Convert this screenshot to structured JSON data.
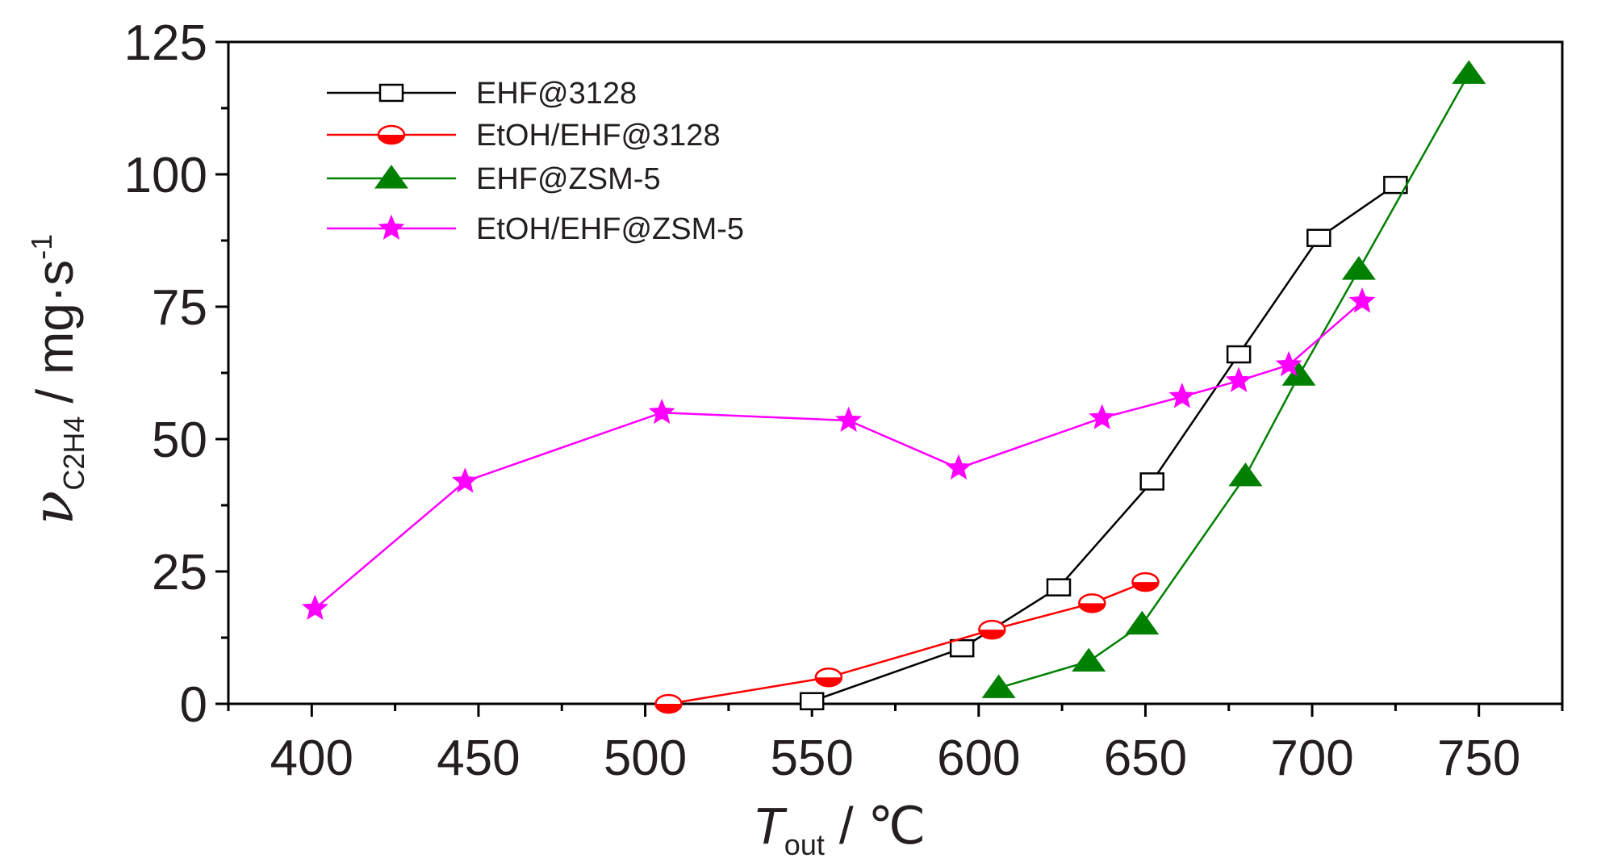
{
  "chart_data": {
    "type": "line",
    "xlabel": {
      "main": "T",
      "sub": "out",
      "unit": "/ ℃"
    },
    "ylabel": {
      "main": "ν",
      "sub": "C2H4",
      "unit": "/ mg·s",
      "sup": "-1"
    },
    "xlim": [
      375,
      775
    ],
    "ylim": [
      0,
      125
    ],
    "xticks": [
      400,
      450,
      500,
      550,
      600,
      650,
      700,
      750
    ],
    "yticks": [
      0,
      25,
      50,
      75,
      100,
      125
    ],
    "xtick_labels": [
      "400",
      "450",
      "500",
      "550",
      "600",
      "650",
      "700",
      "750"
    ],
    "ytick_labels": [
      "0",
      "25",
      "50",
      "75",
      "100",
      "125"
    ],
    "grid": false,
    "legend_position": "top-left",
    "series": [
      {
        "name": "EHF@3128",
        "color": "#000000",
        "marker": "open-square",
        "x": [
          550,
          595,
          624,
          652,
          678,
          702,
          725
        ],
        "y": [
          0.5,
          10.5,
          22,
          42,
          66,
          88,
          98
        ]
      },
      {
        "name": "EtOH/EHF@3128",
        "color": "#ff0000",
        "marker": "half-circle",
        "x": [
          507,
          555,
          604,
          634,
          650
        ],
        "y": [
          0,
          5,
          14,
          19,
          23
        ]
      },
      {
        "name": "EHF@ZSM-5",
        "color": "#008000",
        "marker": "triangle",
        "x": [
          606,
          633,
          649,
          680,
          696,
          714,
          747
        ],
        "y": [
          3,
          8,
          15,
          43,
          62,
          82,
          119
        ]
      },
      {
        "name": "EtOH/EHF@ZSM-5",
        "color": "#ff00ff",
        "marker": "star",
        "x": [
          401,
          446,
          505,
          561,
          594,
          637,
          661,
          678,
          693,
          715
        ],
        "y": [
          18,
          42,
          55,
          53.5,
          44.5,
          54,
          58,
          61,
          64,
          76
        ]
      }
    ]
  }
}
